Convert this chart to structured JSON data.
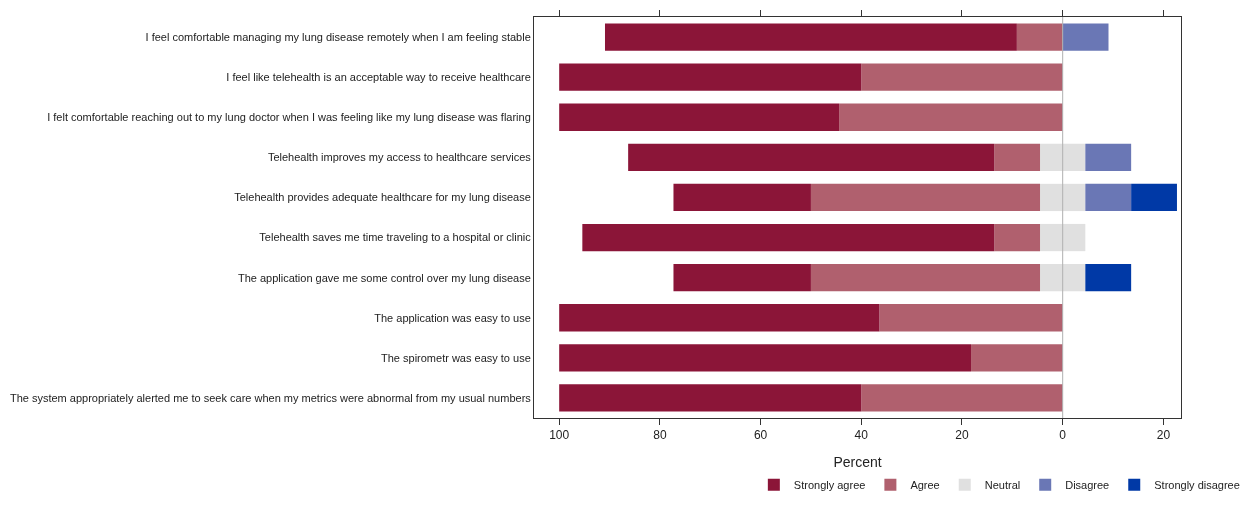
{
  "chart_data": {
    "type": "bar",
    "orientation": "horizontal",
    "stacked": true,
    "xlabel": "Percent",
    "categories": [
      "I feel comfortable managing my lung disease remotely when I am feeling stable",
      "I feel like telehealth is an acceptable way to receive healthcare",
      "I felt comfortable reaching out to my lung doctor when I was feeling like my lung disease was flaring",
      "Telehealth improves my access to healthcare services",
      "Telehealth provides adequate healthcare for my lung disease",
      "Telehealth saves me time traveling to a hospital or clinic",
      "The application gave me some control over my lung disease",
      "The application was easy to use",
      "The spirometr was easy to use",
      "The system appropriately alerted me to seek care when my metrics were abnormal from my usual numbers"
    ],
    "series": [
      {
        "name": "Neutral",
        "color": "#e0e0e0",
        "values": [
          0,
          0,
          0,
          4.5,
          4.5,
          4.5,
          4.5,
          0,
          0,
          0
        ]
      },
      {
        "name": "Agree",
        "color": "#b0606e",
        "values": [
          9.1,
          40,
          44.4,
          9.1,
          45.5,
          9.1,
          45.5,
          36.4,
          18.2,
          40
        ]
      },
      {
        "name": "Strongly agree",
        "color": "#8b1538",
        "values": [
          81.8,
          60,
          55.6,
          72.7,
          27.3,
          81.8,
          27.3,
          63.6,
          81.8,
          60
        ]
      },
      {
        "color": "#e0e0e0",
        "values": [
          0,
          0,
          0,
          -4.5,
          -4.5,
          -4.5,
          -4.5,
          0,
          0,
          0
        ]
      },
      {
        "name": "Disagree",
        "color": "#6a77b5",
        "values": [
          -9.1,
          0,
          0,
          -9.1,
          -9.1,
          0,
          0,
          0,
          0,
          0
        ]
      },
      {
        "name": "Strongly disagree",
        "color": "#0039a6",
        "values": [
          0,
          0,
          0,
          0,
          -9.1,
          0,
          -9.1,
          0,
          0,
          0
        ]
      }
    ],
    "xlim": [
      105,
      -23.5
    ],
    "xticks": [
      100,
      80,
      60,
      40,
      20,
      0,
      {
        "value": -20,
        "label": "20"
      }
    ],
    "ref_lines": [
      {
        "axis": "x",
        "value": 0,
        "color": "#b0b0b0"
      }
    ],
    "legend": "bottom"
  }
}
